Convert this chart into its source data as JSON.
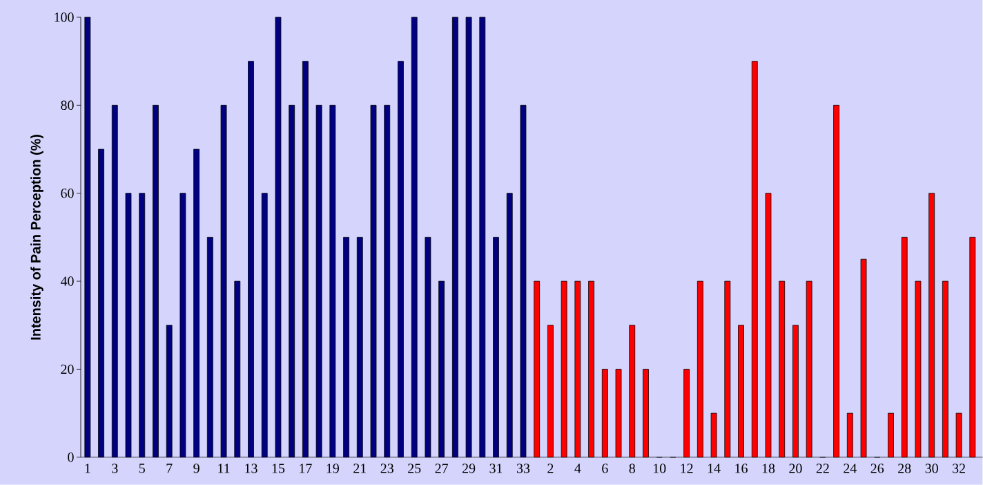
{
  "chart_data": {
    "type": "bar",
    "ylabel": "Intensity of Pain Perception  (%)",
    "categories": [
      "1",
      null,
      "3",
      null,
      "5",
      null,
      "7",
      null,
      "9",
      null,
      "11",
      null,
      "13",
      null,
      "15",
      null,
      "17",
      null,
      "19",
      null,
      "21",
      null,
      "23",
      null,
      "25",
      null,
      "27",
      null,
      "29",
      null,
      "31",
      null,
      "33",
      null,
      "2",
      null,
      "4",
      null,
      "6",
      null,
      "8",
      null,
      "10",
      null,
      "12",
      null,
      "14",
      null,
      "16",
      null,
      "18",
      null,
      "20",
      null,
      "22",
      null,
      "24",
      null,
      "26",
      null,
      "28",
      null,
      "30",
      null,
      "32",
      null
    ],
    "values": [
      100,
      70,
      80,
      60,
      60,
      80,
      30,
      60,
      70,
      50,
      80,
      40,
      90,
      60,
      100,
      80,
      90,
      80,
      80,
      50,
      50,
      80,
      80,
      90,
      100,
      50,
      40,
      100,
      100,
      100,
      50,
      60,
      80,
      40,
      30,
      40,
      40,
      40,
      20,
      20,
      30,
      20,
      0,
      0,
      20,
      40,
      10,
      40,
      30,
      90,
      60,
      40,
      30,
      40,
      0,
      80,
      10,
      45,
      0,
      10,
      50,
      40,
      60,
      40,
      10,
      50
    ],
    "colors": [
      "#000080",
      "#000080",
      "#000080",
      "#000080",
      "#000080",
      "#000080",
      "#000080",
      "#000080",
      "#000080",
      "#000080",
      "#000080",
      "#000080",
      "#000080",
      "#000080",
      "#000080",
      "#000080",
      "#000080",
      "#000080",
      "#000080",
      "#000080",
      "#000080",
      "#000080",
      "#000080",
      "#000080",
      "#000080",
      "#000080",
      "#000080",
      "#000080",
      "#000080",
      "#000080",
      "#000080",
      "#000080",
      "#000080",
      "#ff0000",
      "#ff0000",
      "#ff0000",
      "#ff0000",
      "#ff0000",
      "#ff0000",
      "#ff0000",
      "#ff0000",
      "#ff0000",
      "#ff0000",
      "#ff0000",
      "#ff0000",
      "#ff0000",
      "#ff0000",
      "#ff0000",
      "#ff0000",
      "#ff0000",
      "#ff0000",
      "#ff0000",
      "#ff0000",
      "#ff0000",
      "#ff0000",
      "#ff0000",
      "#ff0000",
      "#ff0000",
      "#ff0000",
      "#ff0000",
      "#ff0000",
      "#ff0000",
      "#ff0000",
      "#ff0000",
      "#ff0000",
      "#ff0000"
    ],
    "ylim": [
      0,
      100
    ],
    "yticks": [
      0,
      20,
      40,
      60,
      80,
      100
    ]
  }
}
